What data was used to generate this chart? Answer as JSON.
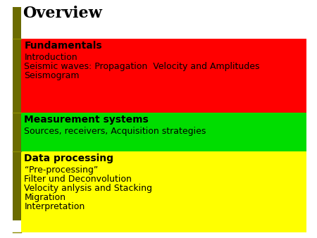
{
  "title": "Overview",
  "title_fontsize": 16,
  "background_color": "#ffffff",
  "left_bar_color": "#6b6b00",
  "sections": [
    {
      "header": "Fundamentals",
      "bg_color": "#ff0000",
      "body_lines": [
        "Introduction",
        "Seismic waves: Propagation  Velocity and Amplitudes",
        "Seismogram"
      ]
    },
    {
      "header": "Measurement systems",
      "bg_color": "#00dd00",
      "body_lines": [
        "Sources, receivers, Acquisition strategies"
      ]
    },
    {
      "header": "Data processing",
      "bg_color": "#ffff00",
      "body_lines": [
        "“Pre-processing”",
        "Filter und Deconvolution",
        "Velocity anlysis and Stacking",
        "Migration",
        "Interpretation"
      ]
    }
  ],
  "header_fontsize": 10,
  "body_fontsize": 9,
  "fig_width": 4.5,
  "fig_height": 3.38,
  "dpi": 100
}
